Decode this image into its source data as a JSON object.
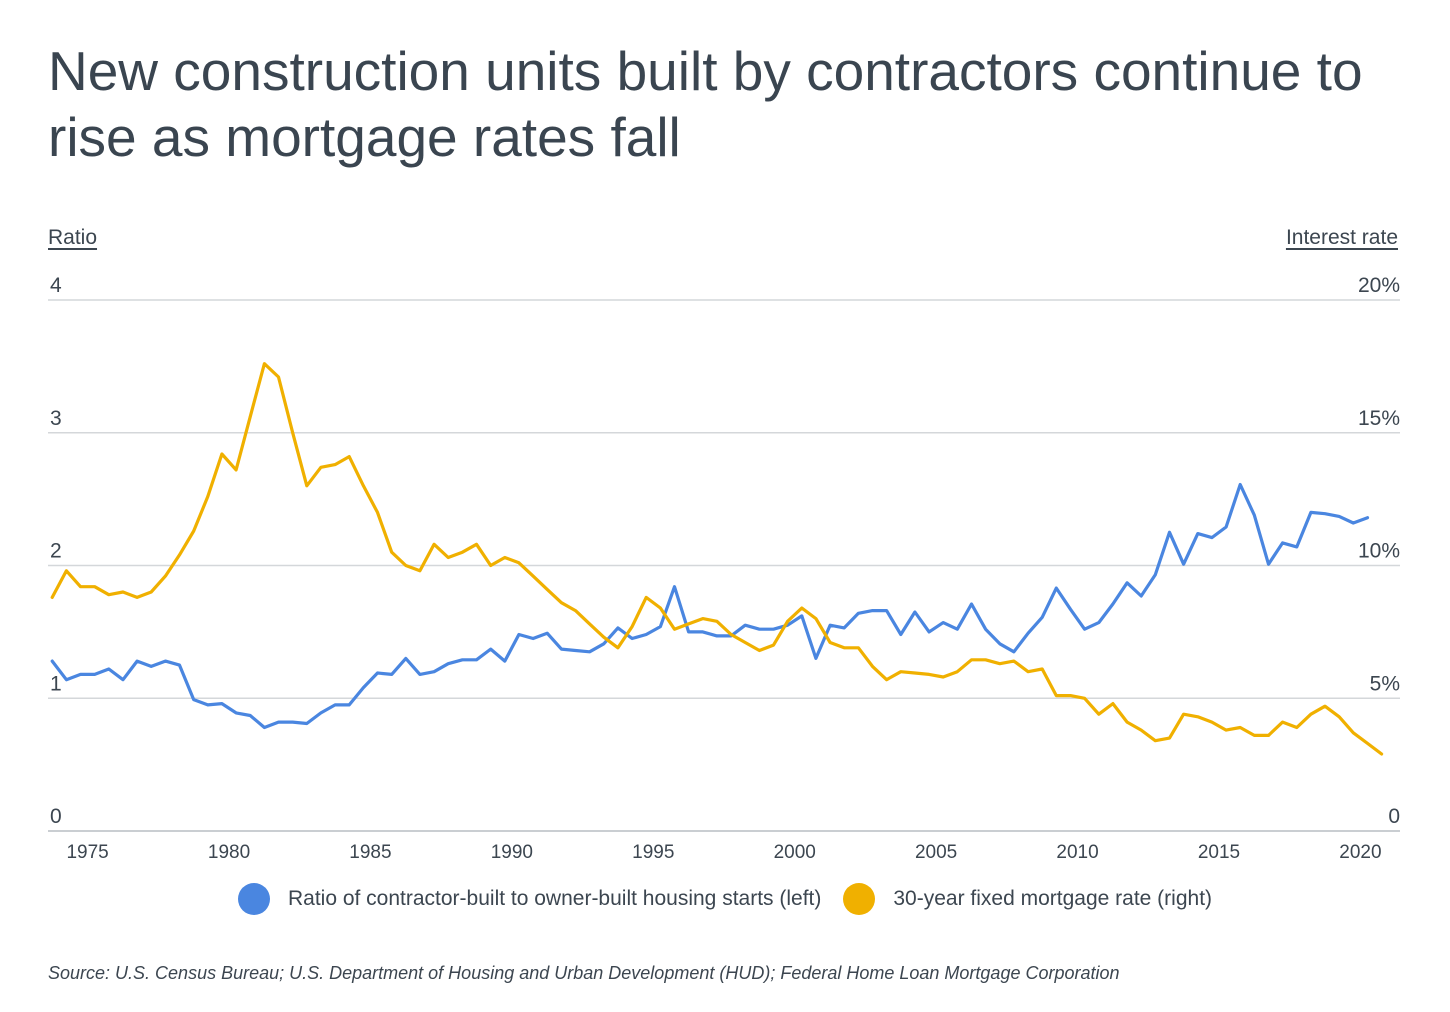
{
  "title": "New construction units built by contractors continue to rise as mortgage rates fall",
  "source": "Source:  U.S. Census Bureau; U.S. Department of Housing and Urban Development (HUD); Federal Home Loan Mortgage Corporation",
  "colors": {
    "ratio": "#4a86e0",
    "rate": "#f0b000",
    "grid": "#d4d7da",
    "text": "#3c4650"
  },
  "chart_data": {
    "type": "line",
    "title": "New construction units built by contractors continue to rise as mortgage rates fall",
    "left_axis_label": "Ratio",
    "right_axis_label": "Interest rate",
    "left_ticks": [
      "0",
      "1",
      "2",
      "3",
      "4"
    ],
    "right_ticks": [
      "0",
      "5%",
      "10%",
      "15%",
      "20%"
    ],
    "x_ticks": [
      "1975",
      "1980",
      "1985",
      "1990",
      "1995",
      "2000",
      "2005",
      "2010",
      "2015",
      "2020"
    ],
    "xlim": [
      1973.6,
      2021.4
    ],
    "ylim_left": [
      0,
      4
    ],
    "ylim_right": [
      0,
      20
    ],
    "grid": true,
    "legend_position": "bottom",
    "series": [
      {
        "name": "Ratio of contractor-built to owner-built housing starts (left)",
        "axis": "left",
        "points": [
          [
            1973.75,
            1.28
          ],
          [
            1974.25,
            1.14
          ],
          [
            1974.75,
            1.18
          ],
          [
            1975.25,
            1.18
          ],
          [
            1975.75,
            1.22
          ],
          [
            1976.25,
            1.14
          ],
          [
            1976.75,
            1.28
          ],
          [
            1977.25,
            1.24
          ],
          [
            1977.75,
            1.28
          ],
          [
            1978.25,
            1.25
          ],
          [
            1978.75,
            0.99
          ],
          [
            1979.25,
            0.95
          ],
          [
            1979.75,
            0.96
          ],
          [
            1980.25,
            0.89
          ],
          [
            1980.75,
            0.87
          ],
          [
            1981.25,
            0.78
          ],
          [
            1981.75,
            0.82
          ],
          [
            1982.25,
            0.82
          ],
          [
            1982.75,
            0.81
          ],
          [
            1983.25,
            0.89
          ],
          [
            1983.75,
            0.95
          ],
          [
            1984.25,
            0.95
          ],
          [
            1984.75,
            1.08
          ],
          [
            1985.25,
            1.19
          ],
          [
            1985.75,
            1.18
          ],
          [
            1986.25,
            1.3
          ],
          [
            1986.75,
            1.18
          ],
          [
            1987.25,
            1.2
          ],
          [
            1987.75,
            1.26
          ],
          [
            1988.25,
            1.29
          ],
          [
            1988.75,
            1.29
          ],
          [
            1989.25,
            1.37
          ],
          [
            1989.75,
            1.28
          ],
          [
            1990.25,
            1.48
          ],
          [
            1990.75,
            1.45
          ],
          [
            1991.25,
            1.49
          ],
          [
            1991.75,
            1.37
          ],
          [
            1992.25,
            1.36
          ],
          [
            1992.75,
            1.35
          ],
          [
            1993.25,
            1.41
          ],
          [
            1993.75,
            1.53
          ],
          [
            1994.25,
            1.45
          ],
          [
            1994.75,
            1.48
          ],
          [
            1995.25,
            1.54
          ],
          [
            1995.75,
            1.84
          ],
          [
            1996.25,
            1.5
          ],
          [
            1996.75,
            1.5
          ],
          [
            1997.25,
            1.47
          ],
          [
            1997.75,
            1.47
          ],
          [
            1998.25,
            1.55
          ],
          [
            1998.75,
            1.52
          ],
          [
            1999.25,
            1.52
          ],
          [
            1999.75,
            1.55
          ],
          [
            2000.25,
            1.62
          ],
          [
            2000.75,
            1.3
          ],
          [
            2001.25,
            1.55
          ],
          [
            2001.75,
            1.53
          ],
          [
            2002.25,
            1.64
          ],
          [
            2002.75,
            1.66
          ],
          [
            2003.25,
            1.66
          ],
          [
            2003.75,
            1.48
          ],
          [
            2004.25,
            1.65
          ],
          [
            2004.75,
            1.5
          ],
          [
            2005.25,
            1.57
          ],
          [
            2005.75,
            1.52
          ],
          [
            2006.25,
            1.71
          ],
          [
            2006.75,
            1.52
          ],
          [
            2007.25,
            1.41
          ],
          [
            2007.75,
            1.35
          ],
          [
            2008.25,
            1.49
          ],
          [
            2008.75,
            1.61
          ],
          [
            2009.25,
            1.83
          ],
          [
            2009.75,
            1.67
          ],
          [
            2010.25,
            1.52
          ],
          [
            2010.75,
            1.57
          ],
          [
            2011.25,
            1.71
          ],
          [
            2011.75,
            1.87
          ],
          [
            2012.25,
            1.77
          ],
          [
            2012.75,
            1.93
          ],
          [
            2013.25,
            2.25
          ],
          [
            2013.75,
            2.01
          ],
          [
            2014.25,
            2.24
          ],
          [
            2014.75,
            2.21
          ],
          [
            2015.25,
            2.29
          ],
          [
            2015.75,
            2.61
          ],
          [
            2016.25,
            2.38
          ],
          [
            2016.75,
            2.01
          ],
          [
            2017.25,
            2.17
          ],
          [
            2017.75,
            2.14
          ],
          [
            2018.25,
            2.4
          ],
          [
            2018.75,
            2.39
          ],
          [
            2019.25,
            2.37
          ],
          [
            2019.75,
            2.32
          ],
          [
            2020.25,
            2.36
          ]
        ]
      },
      {
        "name": "30-year fixed mortgage rate (right)",
        "axis": "right",
        "points": [
          [
            1973.75,
            8.8
          ],
          [
            1974.25,
            9.8
          ],
          [
            1974.75,
            9.2
          ],
          [
            1975.25,
            9.2
          ],
          [
            1975.75,
            8.9
          ],
          [
            1976.25,
            9.0
          ],
          [
            1976.75,
            8.8
          ],
          [
            1977.25,
            9.0
          ],
          [
            1977.75,
            9.6
          ],
          [
            1978.25,
            10.4
          ],
          [
            1978.75,
            11.3
          ],
          [
            1979.25,
            12.6
          ],
          [
            1979.75,
            14.2
          ],
          [
            1980.25,
            13.6
          ],
          [
            1980.75,
            15.6
          ],
          [
            1981.25,
            17.6
          ],
          [
            1981.75,
            17.1
          ],
          [
            1982.25,
            15.0
          ],
          [
            1982.75,
            13.0
          ],
          [
            1983.25,
            13.7
          ],
          [
            1983.75,
            13.8
          ],
          [
            1984.25,
            14.1
          ],
          [
            1984.75,
            13.0
          ],
          [
            1985.25,
            12.0
          ],
          [
            1985.75,
            10.5
          ],
          [
            1986.25,
            10.0
          ],
          [
            1986.75,
            9.8
          ],
          [
            1987.25,
            10.8
          ],
          [
            1987.75,
            10.3
          ],
          [
            1988.25,
            10.5
          ],
          [
            1988.75,
            10.8
          ],
          [
            1989.25,
            10.0
          ],
          [
            1989.75,
            10.3
          ],
          [
            1990.25,
            10.1
          ],
          [
            1990.75,
            9.6
          ],
          [
            1991.25,
            9.1
          ],
          [
            1991.75,
            8.6
          ],
          [
            1992.25,
            8.3
          ],
          [
            1992.75,
            7.8
          ],
          [
            1993.25,
            7.3
          ],
          [
            1993.75,
            6.9
          ],
          [
            1994.25,
            7.7
          ],
          [
            1994.75,
            8.8
          ],
          [
            1995.25,
            8.4
          ],
          [
            1995.75,
            7.6
          ],
          [
            1996.25,
            7.8
          ],
          [
            1996.75,
            8.0
          ],
          [
            1997.25,
            7.9
          ],
          [
            1997.75,
            7.4
          ],
          [
            1998.25,
            7.1
          ],
          [
            1998.75,
            6.8
          ],
          [
            1999.25,
            7.0
          ],
          [
            1999.75,
            7.9
          ],
          [
            2000.25,
            8.4
          ],
          [
            2000.75,
            8.0
          ],
          [
            2001.25,
            7.1
          ],
          [
            2001.75,
            6.9
          ],
          [
            2002.25,
            6.9
          ],
          [
            2002.75,
            6.2
          ],
          [
            2003.25,
            5.7
          ],
          [
            2003.75,
            6.0
          ],
          [
            2004.25,
            5.95
          ],
          [
            2004.75,
            5.9
          ],
          [
            2005.25,
            5.8
          ],
          [
            2005.75,
            6.0
          ],
          [
            2006.25,
            6.45
          ],
          [
            2006.75,
            6.45
          ],
          [
            2007.25,
            6.3
          ],
          [
            2007.75,
            6.4
          ],
          [
            2008.25,
            6.0
          ],
          [
            2008.75,
            6.1
          ],
          [
            2009.25,
            5.1
          ],
          [
            2009.75,
            5.1
          ],
          [
            2010.25,
            5.0
          ],
          [
            2010.75,
            4.4
          ],
          [
            2011.25,
            4.8
          ],
          [
            2011.75,
            4.1
          ],
          [
            2012.25,
            3.8
          ],
          [
            2012.75,
            3.4
          ],
          [
            2013.25,
            3.5
          ],
          [
            2013.75,
            4.4
          ],
          [
            2014.25,
            4.3
          ],
          [
            2014.75,
            4.1
          ],
          [
            2015.25,
            3.8
          ],
          [
            2015.75,
            3.9
          ],
          [
            2016.25,
            3.6
          ],
          [
            2016.75,
            3.6
          ],
          [
            2017.25,
            4.1
          ],
          [
            2017.75,
            3.9
          ],
          [
            2018.25,
            4.4
          ],
          [
            2018.75,
            4.7
          ],
          [
            2019.25,
            4.3
          ],
          [
            2019.75,
            3.7
          ],
          [
            2020.25,
            3.3
          ],
          [
            2020.75,
            2.9
          ]
        ]
      }
    ]
  }
}
